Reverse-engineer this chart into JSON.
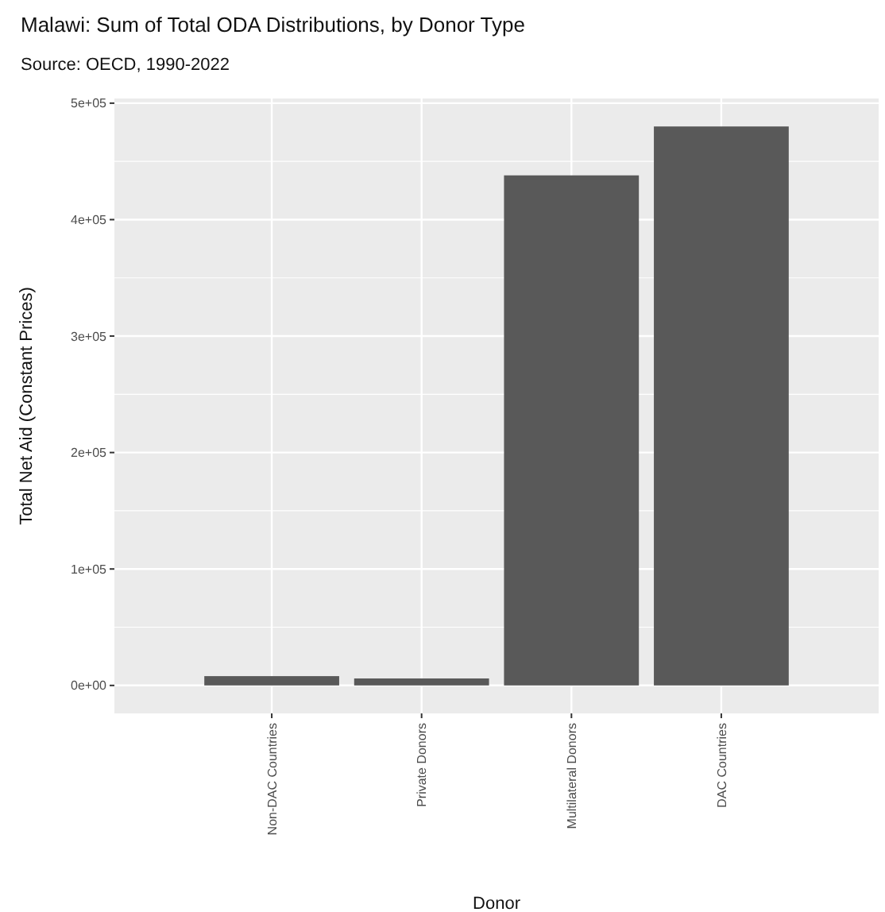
{
  "chart_data": {
    "type": "bar",
    "title": "Malawi: Sum of Total ODA Distributions, by Donor Type",
    "subtitle": "Source: OECD, 1990-2022",
    "xlabel": "Donor",
    "ylabel": "Total Net Aid (Constant Prices)",
    "categories": [
      "Non-DAC Countries",
      "Private Donors",
      "Multilateral Donors",
      "DAC Countries"
    ],
    "values": [
      8000,
      6000,
      438000,
      480000
    ],
    "color": "#595959",
    "ylim": [
      -24000,
      504000
    ],
    "yticks": [
      {
        "value": 0,
        "label": "0e+00"
      },
      {
        "value": 100000,
        "label": "1e+05"
      },
      {
        "value": 200000,
        "label": "2e+05"
      },
      {
        "value": 300000,
        "label": "3e+05"
      },
      {
        "value": 400000,
        "label": "4e+05"
      },
      {
        "value": 500000,
        "label": "5e+05"
      }
    ],
    "grid": true
  }
}
